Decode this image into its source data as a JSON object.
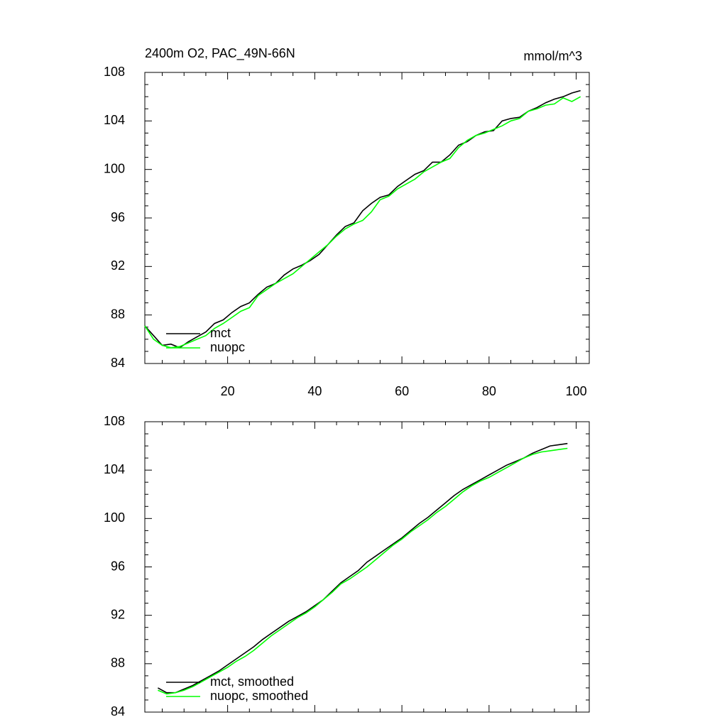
{
  "chart_data": [
    {
      "type": "line",
      "title": "2400m O2, PAC_49N-66N",
      "units": "mmol/m^3",
      "x": [
        1,
        3,
        5,
        7,
        9,
        11,
        13,
        15,
        17,
        19,
        21,
        23,
        25,
        27,
        29,
        31,
        33,
        35,
        37,
        39,
        41,
        43,
        45,
        47,
        49,
        51,
        53,
        55,
        57,
        59,
        61,
        63,
        65,
        67,
        69,
        71,
        73,
        75,
        77,
        79,
        81,
        83,
        85,
        87,
        89,
        91,
        93,
        95,
        97,
        99,
        101
      ],
      "series": [
        {
          "name": "mct",
          "color": "#000000",
          "values": [
            87.1,
            86.3,
            85.5,
            85.6,
            85.3,
            85.8,
            86.2,
            86.6,
            87.3,
            87.6,
            88.2,
            88.7,
            89.0,
            89.7,
            90.3,
            90.6,
            91.3,
            91.8,
            92.1,
            92.5,
            93.0,
            93.8,
            94.6,
            95.3,
            95.6,
            96.6,
            97.2,
            97.7,
            97.9,
            98.6,
            99.1,
            99.6,
            99.9,
            100.6,
            100.6,
            101.2,
            102.0,
            102.3,
            102.8,
            103.1,
            103.2,
            104.0,
            104.2,
            104.3,
            104.8,
            105.1,
            105.5,
            105.8,
            106.0,
            106.3,
            106.5
          ]
        },
        {
          "name": "nuopc",
          "color": "#00ff00",
          "values": [
            87.1,
            86.0,
            85.5,
            85.3,
            85.4,
            85.7,
            86.0,
            86.3,
            86.9,
            87.3,
            87.8,
            88.3,
            88.6,
            89.6,
            90.1,
            90.6,
            91.0,
            91.4,
            92.0,
            92.6,
            93.2,
            93.8,
            94.5,
            95.1,
            95.5,
            95.8,
            96.5,
            97.5,
            97.8,
            98.4,
            98.8,
            99.2,
            99.8,
            100.2,
            100.6,
            100.9,
            101.8,
            102.4,
            102.8,
            103.0,
            103.3,
            103.6,
            104.0,
            104.2,
            104.8,
            105.0,
            105.3,
            105.4,
            105.9,
            105.6,
            106.0
          ]
        }
      ],
      "xlim": [
        1,
        103
      ],
      "xticks": [
        20,
        40,
        60,
        80,
        100
      ],
      "show_xtick_labels": true,
      "ylim": [
        84,
        108
      ],
      "yticks": [
        84,
        88,
        92,
        96,
        100,
        104,
        108
      ],
      "minor_per_major": {
        "x": 3,
        "y": 3
      },
      "legend": "lower left"
    },
    {
      "type": "line",
      "x": [
        4,
        6,
        8,
        10,
        12,
        14,
        16,
        18,
        20,
        22,
        24,
        26,
        28,
        30,
        32,
        34,
        36,
        38,
        40,
        42,
        44,
        46,
        48,
        50,
        52,
        54,
        56,
        58,
        60,
        62,
        64,
        66,
        68,
        70,
        72,
        74,
        76,
        78,
        80,
        82,
        84,
        86,
        88,
        90,
        92,
        94,
        96,
        98
      ],
      "series": [
        {
          "name": "mct, smoothed",
          "color": "#000000",
          "values": [
            86.0,
            85.6,
            85.6,
            85.9,
            86.2,
            86.6,
            87.0,
            87.4,
            87.9,
            88.4,
            88.9,
            89.4,
            90.0,
            90.5,
            91.0,
            91.5,
            91.9,
            92.3,
            92.8,
            93.3,
            94.0,
            94.7,
            95.2,
            95.7,
            96.4,
            96.9,
            97.4,
            97.9,
            98.4,
            99.0,
            99.6,
            100.1,
            100.7,
            101.3,
            101.9,
            102.4,
            102.8,
            103.2,
            103.6,
            104.0,
            104.4,
            104.7,
            105.0,
            105.4,
            105.7,
            106.0,
            106.1,
            106.2
          ]
        },
        {
          "name": "nuopc, smoothed",
          "color": "#00ff00",
          "values": [
            85.8,
            85.5,
            85.6,
            85.8,
            86.1,
            86.5,
            86.9,
            87.3,
            87.7,
            88.2,
            88.6,
            89.1,
            89.7,
            90.3,
            90.8,
            91.3,
            91.8,
            92.2,
            92.7,
            93.3,
            93.9,
            94.6,
            95.0,
            95.5,
            96.0,
            96.6,
            97.2,
            97.8,
            98.3,
            98.9,
            99.4,
            99.9,
            100.5,
            101.0,
            101.6,
            102.2,
            102.7,
            103.1,
            103.4,
            103.8,
            104.2,
            104.6,
            105.0,
            105.3,
            105.5,
            105.6,
            105.7,
            105.8
          ]
        }
      ],
      "xlim": [
        1,
        103
      ],
      "xticks": [
        20,
        40,
        60,
        80,
        100
      ],
      "show_xtick_labels": false,
      "ylim": [
        84,
        108
      ],
      "yticks": [
        84,
        88,
        92,
        96,
        100,
        104,
        108
      ],
      "minor_per_major": {
        "x": 3,
        "y": 3
      },
      "legend": "lower left"
    }
  ]
}
